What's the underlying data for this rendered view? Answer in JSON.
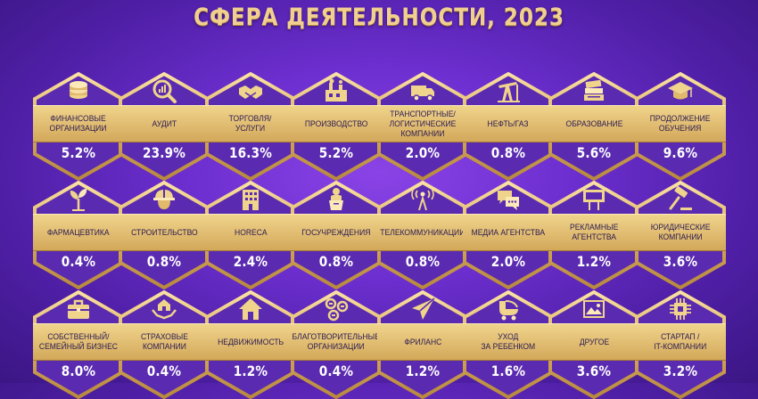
{
  "title": "СФЕРА ДЕЯТЕЛЬНОСТИ, 2023",
  "colors": {
    "bg_center": "#8a43e6",
    "bg_edge": "#3b1684",
    "gold": "#e8c67d",
    "band_text": "#2a1a52",
    "value_text": "#ffffff"
  },
  "items": [
    {
      "label": "ФИНАНСОВЫЕ\nОРГАНИЗАЦИИ",
      "value": "5.2%",
      "icon": "coins-icon"
    },
    {
      "label": "АУДИТ",
      "value": "23.9%",
      "icon": "audit-chart-icon"
    },
    {
      "label": "ТОРГОВЛЯ/\nУСЛУГИ",
      "value": "16.3%",
      "icon": "handshake-icon"
    },
    {
      "label": "ПРОИЗВОДСТВО",
      "value": "5.2%",
      "icon": "factory-icon"
    },
    {
      "label": "ТРАНСПОРТНЫЕ/\nЛОГИСТИЧЕСКИЕ КОМПАНИИ",
      "value": "2.0%",
      "icon": "truck-icon"
    },
    {
      "label": "НЕФТЬ/ГАЗ",
      "value": "0.8%",
      "icon": "oil-pump-icon"
    },
    {
      "label": "ОБРАЗОВАНИЕ",
      "value": "5.6%",
      "icon": "books-icon"
    },
    {
      "label": "ПРОДОЛЖЕНИЕ\nОБУЧЕНИЯ",
      "value": "9.6%",
      "icon": "graduation-cap-icon"
    },
    {
      "label": "ФАРМАЦЕВТИКА",
      "value": "0.4%",
      "icon": "sprout-icon"
    },
    {
      "label": "СТРОИТЕЛЬСТВО",
      "value": "0.8%",
      "icon": "builder-helmet-icon"
    },
    {
      "label": "HORECA",
      "value": "2.4%",
      "icon": "hotel-building-icon"
    },
    {
      "label": "ГОСУЧРЕЖДЕНИЯ",
      "value": "0.8%",
      "icon": "podium-speaker-icon"
    },
    {
      "label": "ТЕЛЕКОММУНИКАЦИИ",
      "value": "0.8%",
      "icon": "radio-tower-icon"
    },
    {
      "label": "МЕДИА АГЕНТСТВА",
      "value": "2.0%",
      "icon": "speech-bubbles-icon"
    },
    {
      "label": "РЕКЛАМНЫЕ\nАГЕНТСТВА",
      "value": "1.2%",
      "icon": "billboard-icon"
    },
    {
      "label": "ЮРИДИЧЕСКИЕ\nКОМПАНИИ",
      "value": "3.6%",
      "icon": "gavel-icon"
    },
    {
      "label": "СОБСТВЕННЫЙ/\nСЕМЕЙНЫЙ БИЗНЕС",
      "value": "8.0%",
      "icon": "briefcase-icon"
    },
    {
      "label": "СТРАХОВЫЕ\nКОМПАНИИ",
      "value": "0.4%",
      "icon": "insurance-hands-house-icon"
    },
    {
      "label": "НЕДВИЖИМОСТЬ",
      "value": "1.2%",
      "icon": "house-icon"
    },
    {
      "label": "БЛАГОТВОРИТЕЛЬНЫЕ\nОРГАНИЗАЦИИ",
      "value": "0.4%",
      "icon": "hearts-icon"
    },
    {
      "label": "ФРИЛАНС",
      "value": "1.2%",
      "icon": "paper-plane-icon"
    },
    {
      "label": "УХОД\nЗА РЕБЕНКОМ",
      "value": "1.6%",
      "icon": "baby-stroller-icon"
    },
    {
      "label": "ДРУГОЕ",
      "value": "3.6%",
      "icon": "picture-icon"
    },
    {
      "label": "СТАРТАП /\nIT-КОМПАНИИ",
      "value": "3.2%",
      "icon": "chip-icon"
    }
  ]
}
